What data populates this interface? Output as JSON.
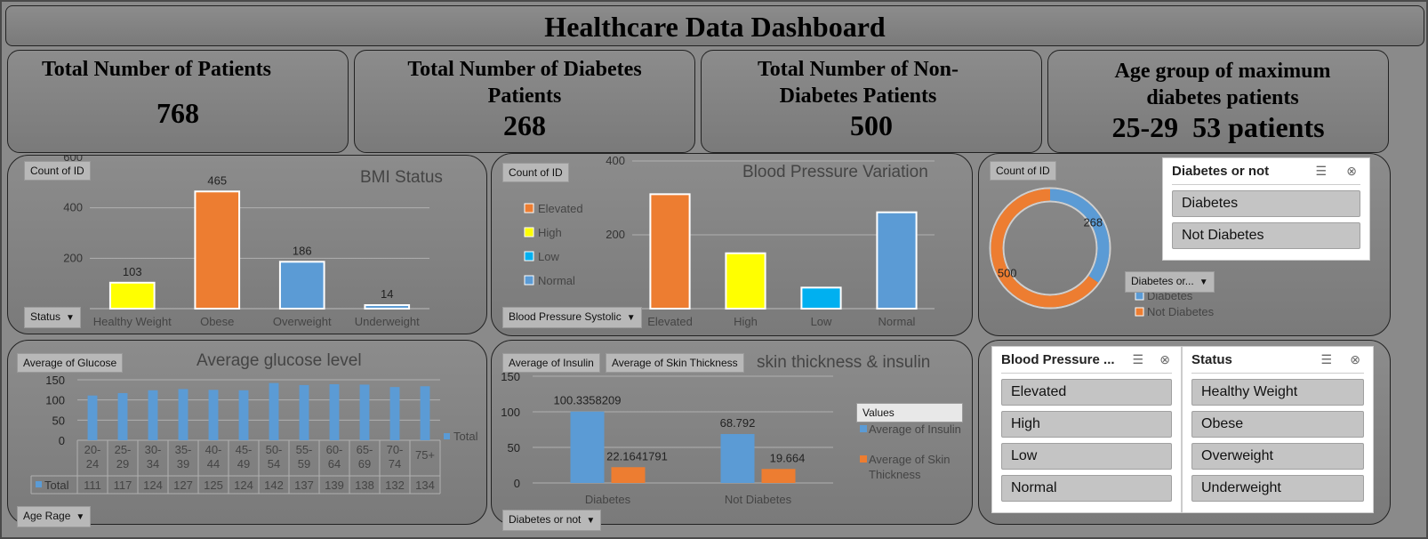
{
  "header": {
    "title": "Healthcare Data Dashboard"
  },
  "kpis": [
    {
      "label": "Total Number of Patients",
      "value": "768"
    },
    {
      "label": "Total Number of Diabetes Patients",
      "value": "268"
    },
    {
      "label": "Total Number of Non-Diabetes Patients",
      "value": "500"
    },
    {
      "label": "Age group of maximum diabetes patients",
      "value": "25-29  53 patients"
    }
  ],
  "bmi_panel": {
    "title": "BMI Status",
    "value_pill": "Count of ID",
    "filter_pill": "Status",
    "tick_cut": "600"
  },
  "bp_panel": {
    "title": "Blood Pressure Variation",
    "value_pill": "Count of ID",
    "filter_pill": "Blood Pressure Systolic"
  },
  "donut_panel": {
    "value_pill": "Count of ID",
    "legend_pill": "Diabetes or..."
  },
  "glucose_panel": {
    "title": "Average glucose level",
    "value_pill": "Average of Glucose",
    "filter_pill": "Age Rage",
    "legend_label": "Total"
  },
  "skin_panel": {
    "title": "skin thickness & insulin",
    "value_pill_1": "Average of Insulin",
    "value_pill_2": "Average of Skin Thickness",
    "filter_pill": "Diabetes or not",
    "legend_title": "Values"
  },
  "slicers": {
    "diabetes": {
      "title": "Diabetes or not",
      "items": [
        "Diabetes",
        "Not Diabetes"
      ]
    },
    "blood_pressure": {
      "title": "Blood Pressure ...",
      "items": [
        "Elevated",
        "High",
        "Low",
        "Normal"
      ]
    },
    "status": {
      "title": "Status",
      "items": [
        "Healthy Weight",
        "Obese",
        "Overweight",
        "Underweight"
      ]
    }
  },
  "colors": {
    "yellow": "#ffff00",
    "orange": "#ed7d31",
    "blue": "#5b9bd5",
    "cyan": "#00b0f0"
  },
  "chart_data": [
    {
      "type": "bar",
      "title": "BMI Status",
      "categories": [
        "Healthy Weight",
        "Obese",
        "Overweight",
        "Underweight"
      ],
      "values": [
        103,
        465,
        186,
        14
      ],
      "bar_colors": [
        "#ffff00",
        "#ed7d31",
        "#5b9bd5",
        "#5b9bd5"
      ],
      "yticks": [
        "200",
        "400"
      ],
      "ylim": [
        0,
        600
      ]
    },
    {
      "type": "bar",
      "title": "Blood Pressure Variation",
      "categories": [
        "Elevated",
        "High",
        "Low",
        "Normal"
      ],
      "values": [
        310,
        150,
        57,
        261
      ],
      "bar_colors": [
        "#ed7d31",
        "#ffff00",
        "#00b0f0",
        "#5b9bd5"
      ],
      "yticks": [
        "200",
        "400"
      ],
      "ylim": [
        0,
        400
      ]
    },
    {
      "type": "pie",
      "series": [
        {
          "name": "Diabetes",
          "value": 268,
          "label": "268",
          "color": "#5b9bd5"
        },
        {
          "name": "Not Diabetes",
          "value": 500,
          "label": "500",
          "color": "#ed7d31"
        }
      ]
    },
    {
      "type": "bar",
      "title": "Average glucose level",
      "categories": [
        "20-\n24",
        "25-\n29",
        "30-\n34",
        "35-\n39",
        "40-\n44",
        "45-\n49",
        "50-\n54",
        "55-\n59",
        "60-\n64",
        "65-\n69",
        "70-\n74",
        "75+"
      ],
      "values": [
        111,
        117,
        124,
        127,
        125,
        124,
        142,
        137,
        139,
        138,
        132,
        134
      ],
      "yticks": [
        "0",
        "50",
        "100",
        "150"
      ],
      "ylim": [
        0,
        150
      ],
      "table_row_label": "Total"
    },
    {
      "type": "bar",
      "title": "skin thickness & insulin",
      "categories": [
        "Diabetes",
        "Not Diabetes"
      ],
      "series": [
        {
          "name": "Average of Insulin",
          "values": [
            100.3358209,
            68.792
          ],
          "labels": [
            "100.3358209",
            "68.792"
          ],
          "color": "#5b9bd5"
        },
        {
          "name": "Average of Skin Thickness",
          "values": [
            22.1641791,
            19.664
          ],
          "labels": [
            "22.1641791",
            "19.664"
          ],
          "color": "#ed7d31"
        }
      ],
      "yticks": [
        "0",
        "50",
        "100",
        "150"
      ],
      "ylim": [
        0,
        150
      ]
    }
  ]
}
